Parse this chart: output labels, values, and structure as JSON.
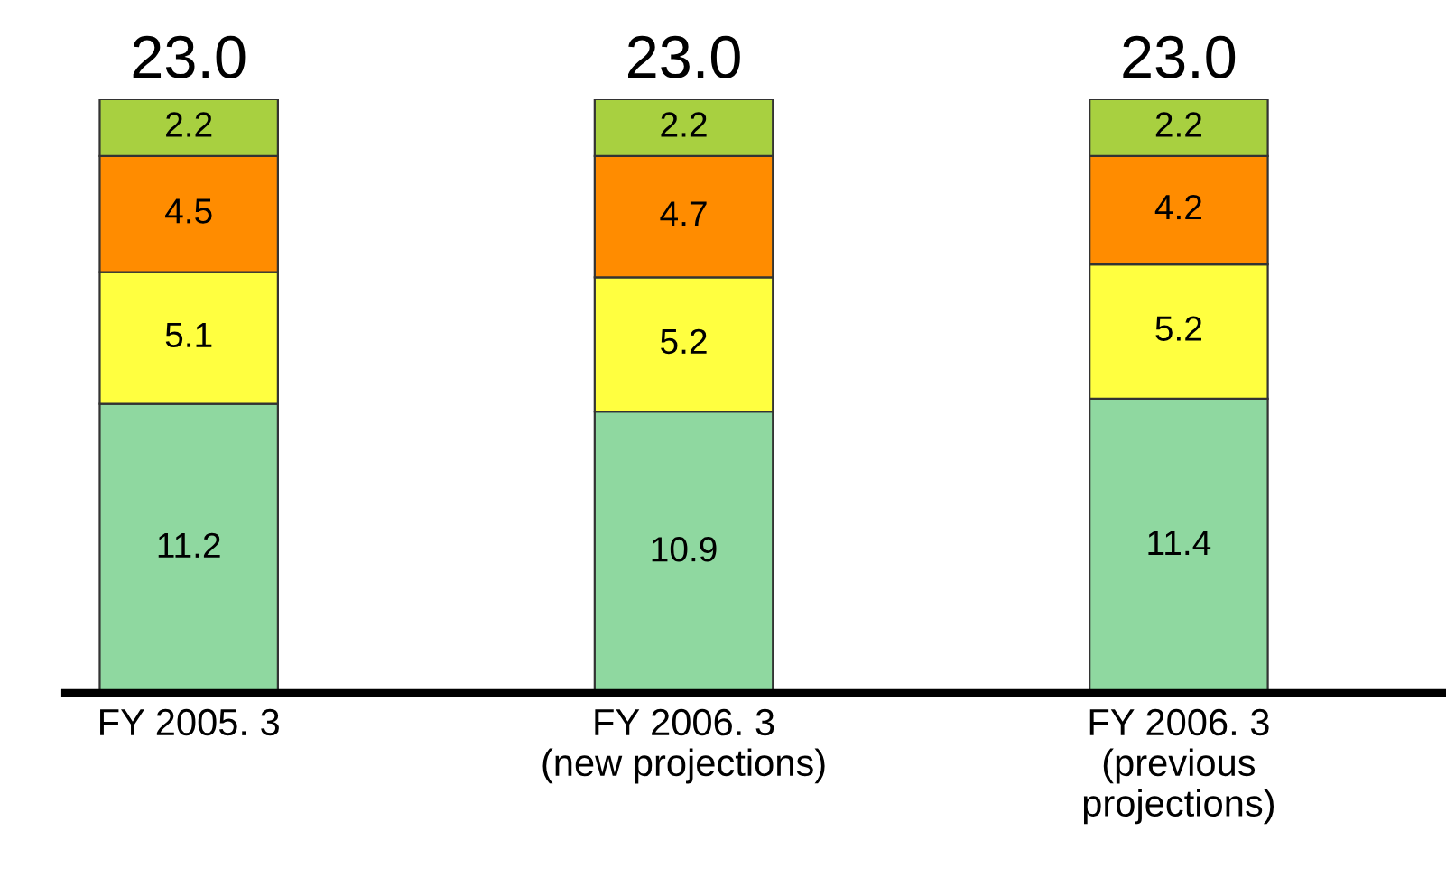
{
  "chart_data": {
    "type": "bar",
    "stacked": true,
    "data_labels": true,
    "grid": false,
    "legend": false,
    "tick_labels": "x",
    "categories": [
      "FY 2005. 3",
      "FY 2006. 3\n(new projections)",
      "FY 2006. 3\n(previous\nprojections)"
    ],
    "series": [
      {
        "color": "#8fd8a0",
        "values": [
          11.2,
          10.9,
          11.4
        ]
      },
      {
        "color": "#ffff40",
        "values": [
          5.1,
          5.2,
          5.2
        ]
      },
      {
        "color": "#ff8c00",
        "values": [
          4.5,
          4.7,
          4.2
        ]
      },
      {
        "color": "#a8d040",
        "values": [
          2.2,
          2.2,
          2.2
        ]
      }
    ],
    "totals": [
      "23.0",
      "23.0",
      "23.0"
    ]
  }
}
